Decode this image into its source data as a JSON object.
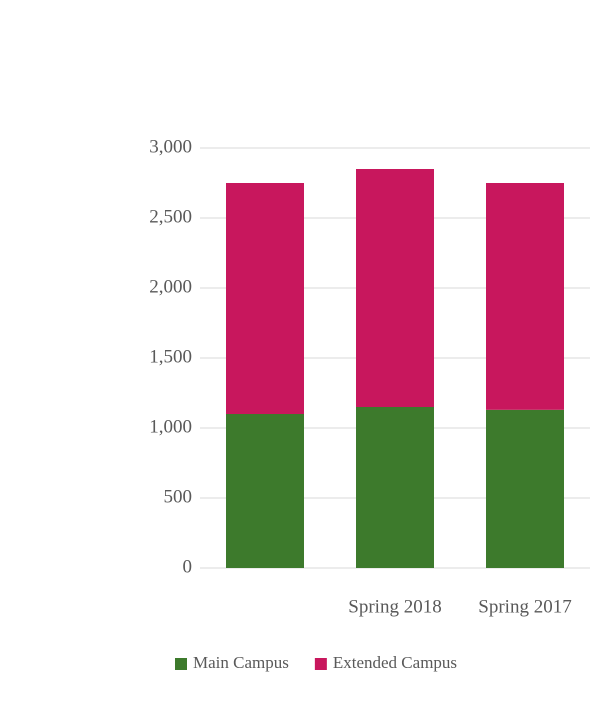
{
  "chart_data": {
    "type": "bar",
    "stacked": true,
    "categories": [
      null,
      "Spring 2018",
      "Spring 2017"
    ],
    "series": [
      {
        "name": "Main Campus",
        "color": "#3d7a2c",
        "values": [
          1100,
          1150,
          1130
        ]
      },
      {
        "name": "Extended Campus",
        "color": "#c8175d",
        "values": [
          1650,
          1700,
          1620
        ]
      }
    ],
    "ylim": [
      0,
      3000
    ],
    "yticks": [
      {
        "value": 0,
        "label": "0"
      },
      500,
      {
        "value": 1000,
        "label": "1,000"
      },
      {
        "value": 1500,
        "label": "1,500"
      },
      {
        "value": 2000,
        "label": "2,000"
      },
      {
        "value": 2500,
        "label": "2,500"
      },
      {
        "value": 3000,
        "label": "3,000"
      }
    ],
    "grid": true,
    "legend": "bottom"
  }
}
